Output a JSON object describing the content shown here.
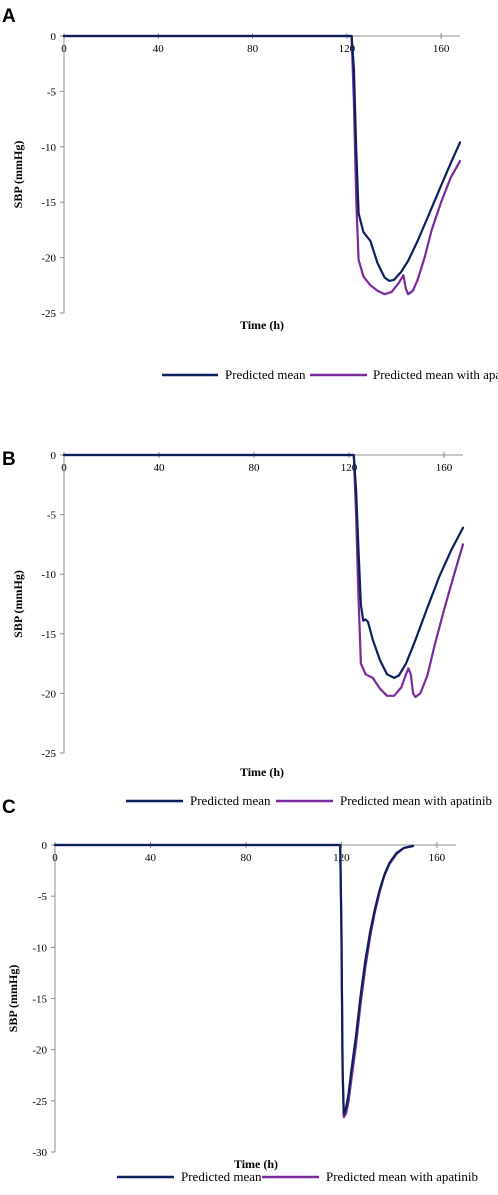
{
  "colors": {
    "mean": "#0b1f5c",
    "apatinib": "#7a2a9c",
    "axis": "#8c8c8c"
  },
  "chart_data": [
    {
      "type": "line",
      "panel": "A",
      "xlabel": "Time (h)",
      "ylabel": "SBP (mmHg)",
      "xlim": [
        0,
        168
      ],
      "ylim": [
        -25,
        0
      ],
      "xticks": [
        "0",
        "40",
        "80",
        "120",
        "160"
      ],
      "yticks": [
        "0",
        "-5",
        "-10",
        "-15",
        "-20",
        "-25"
      ],
      "legend": "bottom",
      "series": [
        {
          "name": "Predicted mean",
          "x": [
            0,
            120,
            122,
            123,
            124,
            125,
            127,
            130,
            133,
            136,
            138,
            140,
            143,
            146,
            150,
            155,
            160,
            164,
            168
          ],
          "y": [
            0,
            0,
            0,
            -3,
            -10.5,
            -16,
            -17.7,
            -18.5,
            -20.5,
            -21.8,
            -22.1,
            -22.0,
            -21.3,
            -20.3,
            -18.5,
            -16.0,
            -13.5,
            -11.5,
            -9.6
          ]
        },
        {
          "name": "Predicted mean with apatinib",
          "x": [
            0,
            120,
            122,
            123,
            124,
            125,
            127,
            130,
            133,
            136,
            139,
            142,
            144,
            145,
            146,
            148,
            150,
            153,
            156,
            160,
            164,
            168
          ],
          "y": [
            0,
            0,
            0,
            -6,
            -15,
            -20.2,
            -21.7,
            -22.5,
            -23.0,
            -23.3,
            -23.1,
            -22.3,
            -21.6,
            -22.8,
            -23.3,
            -23.0,
            -22.0,
            -20.0,
            -17.5,
            -15.0,
            -12.8,
            -11.3
          ]
        }
      ]
    },
    {
      "type": "line",
      "panel": "B",
      "xlabel": "Time (h)",
      "ylabel": "SBP (mmHg)",
      "xlim": [
        0,
        168
      ],
      "ylim": [
        -25,
        0
      ],
      "xticks": [
        "0",
        "40",
        "80",
        "120",
        "160"
      ],
      "yticks": [
        "0",
        "-5",
        "-10",
        "-15",
        "-20",
        "-25"
      ],
      "legend": "bottom",
      "series": [
        {
          "name": "Predicted mean",
          "x": [
            0,
            120,
            122,
            123,
            124,
            125,
            126,
            127,
            128,
            130,
            133,
            136,
            139,
            141,
            144,
            148,
            153,
            158,
            163,
            168
          ],
          "y": [
            0,
            0,
            0,
            -3,
            -8,
            -12.6,
            -13.9,
            -13.8,
            -14.0,
            -15.5,
            -17.2,
            -18.4,
            -18.7,
            -18.5,
            -17.5,
            -15.5,
            -12.8,
            -10.2,
            -8.0,
            -6.1
          ]
        },
        {
          "name": "Predicted mean with apatinib",
          "x": [
            0,
            120,
            122,
            123,
            124,
            125,
            127,
            130,
            133,
            136,
            139,
            142,
            144,
            145,
            146,
            147,
            148,
            150,
            153,
            156,
            160,
            164,
            168
          ],
          "y": [
            0,
            0,
            0,
            -5,
            -12,
            -17.5,
            -18.4,
            -18.7,
            -19.6,
            -20.2,
            -20.2,
            -19.5,
            -18.4,
            -17.9,
            -18.4,
            -20.0,
            -20.3,
            -20.0,
            -18.5,
            -16.0,
            -13.0,
            -10.2,
            -7.5
          ]
        }
      ]
    },
    {
      "type": "line",
      "panel": "C",
      "xlabel": "Time (h)",
      "ylabel": "SBP (mmHg)",
      "xlim": [
        0,
        168
      ],
      "ylim": [
        -30,
        0
      ],
      "xticks": [
        "0",
        "40",
        "80",
        "120",
        "160"
      ],
      "yticks": [
        "0",
        "-5",
        "-10",
        "-15",
        "-20",
        "-25",
        "-30"
      ],
      "legend": "bottom",
      "series": [
        {
          "name": "Predicted mean",
          "x": [
            0,
            119.5,
            120,
            120.5,
            121,
            122,
            123,
            124,
            126,
            128,
            130,
            132,
            134,
            136,
            138,
            140,
            143,
            146,
            150
          ],
          "y": [
            0,
            0,
            -8,
            -22,
            -26.3,
            -25.6,
            -24.3,
            -22.3,
            -18.8,
            -14.8,
            -11.3,
            -8.5,
            -6.3,
            -4.4,
            -2.9,
            -1.8,
            -0.8,
            -0.3,
            -0.1
          ]
        },
        {
          "name": "Predicted mean with apatinib",
          "x": [
            0,
            119.5,
            120,
            120.5,
            121,
            122,
            123,
            124,
            126,
            128,
            130,
            132,
            134,
            136,
            138,
            140,
            143,
            146,
            150
          ],
          "y": [
            0,
            0,
            -8,
            -22,
            -26.6,
            -26.2,
            -25.0,
            -23.2,
            -19.7,
            -15.6,
            -12.0,
            -9.0,
            -6.6,
            -4.6,
            -3.0,
            -1.9,
            -0.9,
            -0.3,
            -0.1
          ]
        }
      ]
    }
  ]
}
